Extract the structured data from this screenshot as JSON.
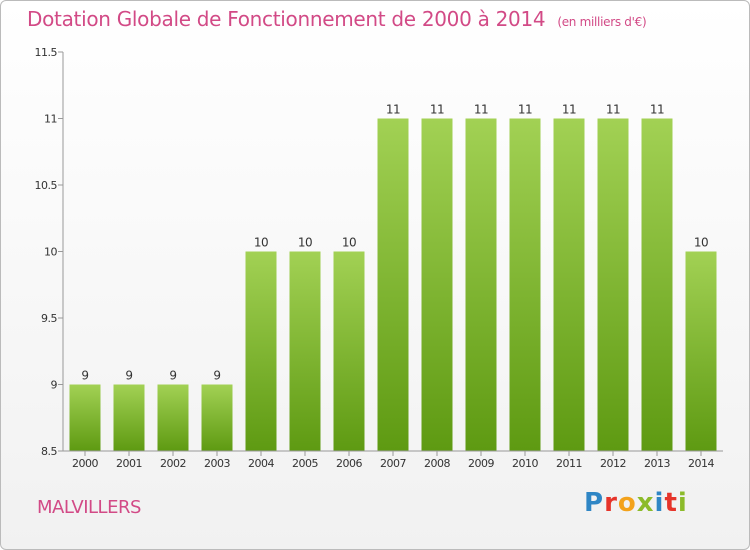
{
  "header": {
    "title": "Dotation Globale de Fonctionnement de 2000 à 2014",
    "subtitle": "(en milliers d'€)"
  },
  "footer": {
    "commune": "MALVILLERS",
    "logo_letters": [
      "P",
      "r",
      "o",
      "x",
      "i",
      "t",
      "i"
    ],
    "logo_colors": [
      "#2f86c5",
      "#e6342a",
      "#f3a21b",
      "#8cbb2a",
      "#2f86c5",
      "#e6342a",
      "#8cbb2a"
    ]
  },
  "chart_data": {
    "type": "bar",
    "categories": [
      "2000",
      "2001",
      "2002",
      "2003",
      "2004",
      "2005",
      "2006",
      "2007",
      "2008",
      "2009",
      "2010",
      "2011",
      "2012",
      "2013",
      "2014"
    ],
    "values": [
      9,
      9,
      9,
      9,
      10,
      10,
      10,
      11,
      11,
      11,
      11,
      11,
      11,
      11,
      10
    ],
    "data_labels": [
      "9",
      "9",
      "9",
      "9",
      "10",
      "10",
      "10",
      "11",
      "11",
      "11",
      "11",
      "11",
      "11",
      "11",
      "10"
    ],
    "yticks": [
      8.5,
      9,
      9.5,
      10,
      10.5,
      11,
      11.5
    ],
    "ytick_labels": [
      "8.5",
      "9",
      "9.5",
      "10",
      "10.5",
      "11",
      "11.5"
    ],
    "ylim": [
      8.5,
      11.5
    ],
    "grid": false,
    "bar_color_top": "#a2d154",
    "bar_color_bottom": "#5e9a12",
    "axis_color": "#999999",
    "label_color": "#333333"
  }
}
